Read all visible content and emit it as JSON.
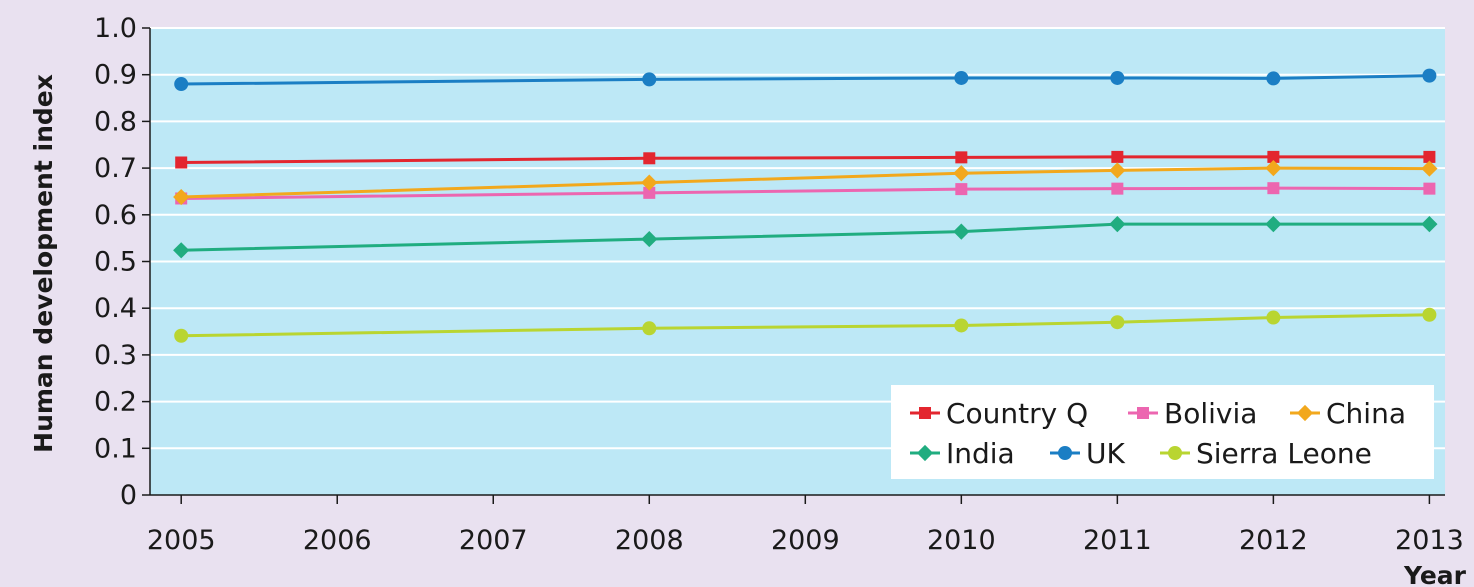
{
  "chart_data": {
    "type": "line",
    "title": "",
    "xlabel": "Year",
    "ylabel": "Human development index",
    "x": [
      2005,
      2008,
      2010,
      2011,
      2012,
      2013
    ],
    "x_ticks": [
      "2005",
      "2006",
      "2007",
      "2008",
      "2009",
      "2010",
      "2011",
      "2012",
      "2013"
    ],
    "x_tick_positions": [
      2005,
      2006,
      2007,
      2008,
      2009,
      2010,
      2011,
      2012,
      2013
    ],
    "y_ticks": [
      "0",
      "0.1",
      "0.2",
      "0.3",
      "0.4",
      "0.5",
      "0.6",
      "0.7",
      "0.8",
      "0.9",
      "1.0"
    ],
    "ylim": [
      0,
      1.0
    ],
    "xlim": [
      2004.8,
      2013.1
    ],
    "grid": true,
    "legend_position": "bottom-right",
    "colors": {
      "plot_background": "#bde8f6",
      "page_background": "#e9e1f0",
      "grid": "#ffffff"
    },
    "series": [
      {
        "name": "Country Q",
        "color": "#e3262f",
        "marker": "square",
        "values": [
          0.712,
          0.721,
          0.723,
          0.724,
          0.724,
          0.724
        ]
      },
      {
        "name": "Bolivia",
        "color": "#ec66b0",
        "marker": "square",
        "values": [
          0.635,
          0.647,
          0.655,
          0.656,
          0.657,
          0.656
        ]
      },
      {
        "name": "China",
        "color": "#f2a81d",
        "marker": "diamond",
        "values": [
          0.638,
          0.669,
          0.689,
          0.695,
          0.7,
          0.699
        ]
      },
      {
        "name": "India",
        "color": "#20ad80",
        "marker": "diamond",
        "values": [
          0.524,
          0.548,
          0.564,
          0.58,
          0.58,
          0.58
        ]
      },
      {
        "name": "UK",
        "color": "#1b7ec4",
        "marker": "circle",
        "values": [
          0.88,
          0.89,
          0.893,
          0.893,
          0.892,
          0.898
        ]
      },
      {
        "name": "Sierra Leone",
        "color": "#b9d531",
        "marker": "circle",
        "values": [
          0.341,
          0.357,
          0.363,
          0.37,
          0.38,
          0.386
        ]
      }
    ]
  }
}
